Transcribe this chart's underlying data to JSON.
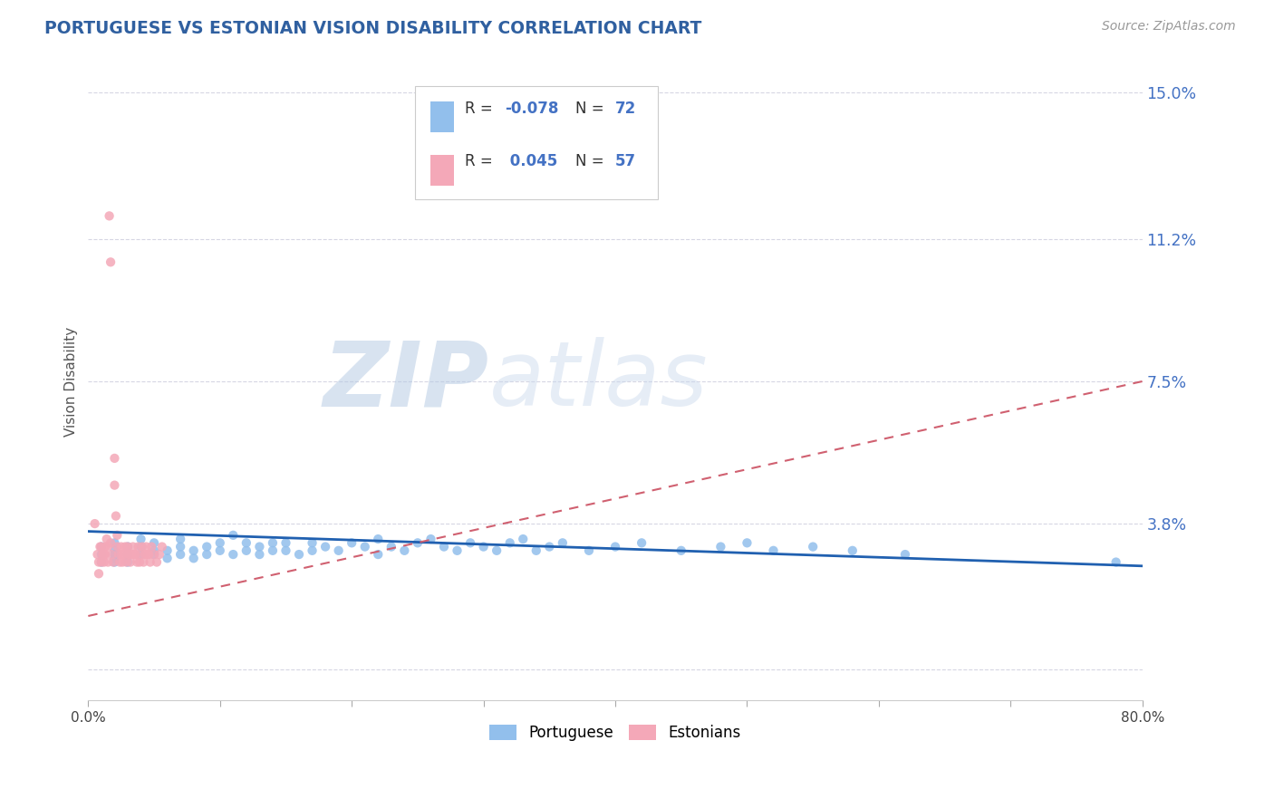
{
  "title": "PORTUGUESE VS ESTONIAN VISION DISABILITY CORRELATION CHART",
  "source_text": "Source: ZipAtlas.com",
  "ylabel": "Vision Disability",
  "x_min": 0.0,
  "x_max": 0.8,
  "y_min": -0.008,
  "y_max": 0.158,
  "yticks": [
    0.0,
    0.038,
    0.075,
    0.112,
    0.15
  ],
  "ytick_labels": [
    "",
    "3.8%",
    "7.5%",
    "11.2%",
    "15.0%"
  ],
  "xticks": [
    0.0,
    0.1,
    0.2,
    0.3,
    0.4,
    0.5,
    0.6,
    0.7,
    0.8
  ],
  "xtick_labels": [
    "0.0%",
    "",
    "",
    "",
    "",
    "",
    "",
    "",
    "80.0%"
  ],
  "portuguese_color": "#92BFEC",
  "estonian_color": "#F4A8B8",
  "trend_portuguese_color": "#2060B0",
  "trend_estonian_color": "#D06070",
  "legend_label_portuguese": "Portuguese",
  "legend_label_estonian": "Estonians",
  "portuguese_x": [
    0.01,
    0.01,
    0.01,
    0.02,
    0.02,
    0.02,
    0.02,
    0.02,
    0.03,
    0.03,
    0.03,
    0.04,
    0.04,
    0.04,
    0.05,
    0.05,
    0.05,
    0.06,
    0.06,
    0.07,
    0.07,
    0.07,
    0.08,
    0.08,
    0.09,
    0.09,
    0.1,
    0.1,
    0.11,
    0.11,
    0.12,
    0.12,
    0.13,
    0.13,
    0.14,
    0.14,
    0.15,
    0.15,
    0.16,
    0.17,
    0.17,
    0.18,
    0.19,
    0.2,
    0.21,
    0.22,
    0.22,
    0.23,
    0.24,
    0.25,
    0.26,
    0.27,
    0.28,
    0.29,
    0.3,
    0.31,
    0.32,
    0.33,
    0.34,
    0.35,
    0.36,
    0.38,
    0.4,
    0.42,
    0.45,
    0.48,
    0.5,
    0.52,
    0.55,
    0.58,
    0.62,
    0.78
  ],
  "portuguese_y": [
    0.03,
    0.032,
    0.028,
    0.031,
    0.029,
    0.033,
    0.028,
    0.03,
    0.03,
    0.032,
    0.028,
    0.03,
    0.032,
    0.034,
    0.03,
    0.031,
    0.033,
    0.031,
    0.029,
    0.03,
    0.032,
    0.034,
    0.031,
    0.029,
    0.03,
    0.032,
    0.031,
    0.033,
    0.03,
    0.035,
    0.031,
    0.033,
    0.032,
    0.03,
    0.033,
    0.031,
    0.031,
    0.033,
    0.03,
    0.031,
    0.033,
    0.032,
    0.031,
    0.033,
    0.032,
    0.03,
    0.034,
    0.032,
    0.031,
    0.033,
    0.034,
    0.032,
    0.031,
    0.033,
    0.032,
    0.031,
    0.033,
    0.034,
    0.031,
    0.032,
    0.033,
    0.031,
    0.032,
    0.033,
    0.031,
    0.032,
    0.033,
    0.031,
    0.032,
    0.031,
    0.03,
    0.028
  ],
  "estonian_x": [
    0.005,
    0.007,
    0.008,
    0.008,
    0.009,
    0.01,
    0.01,
    0.011,
    0.012,
    0.012,
    0.013,
    0.013,
    0.014,
    0.015,
    0.015,
    0.016,
    0.017,
    0.017,
    0.018,
    0.019,
    0.02,
    0.02,
    0.021,
    0.022,
    0.022,
    0.023,
    0.024,
    0.025,
    0.025,
    0.026,
    0.027,
    0.028,
    0.029,
    0.03,
    0.03,
    0.031,
    0.032,
    0.033,
    0.034,
    0.035,
    0.036,
    0.037,
    0.038,
    0.039,
    0.04,
    0.041,
    0.042,
    0.043,
    0.044,
    0.045,
    0.046,
    0.047,
    0.048,
    0.05,
    0.052,
    0.054,
    0.056
  ],
  "estonian_y": [
    0.038,
    0.03,
    0.025,
    0.028,
    0.032,
    0.032,
    0.028,
    0.03,
    0.03,
    0.028,
    0.032,
    0.03,
    0.034,
    0.032,
    0.028,
    0.118,
    0.106,
    0.033,
    0.03,
    0.028,
    0.055,
    0.048,
    0.04,
    0.035,
    0.032,
    0.03,
    0.028,
    0.032,
    0.03,
    0.028,
    0.03,
    0.032,
    0.028,
    0.03,
    0.032,
    0.03,
    0.028,
    0.03,
    0.032,
    0.03,
    0.03,
    0.028,
    0.032,
    0.028,
    0.03,
    0.032,
    0.028,
    0.03,
    0.032,
    0.03,
    0.03,
    0.028,
    0.032,
    0.03,
    0.028,
    0.03,
    0.032
  ],
  "port_trend_start_y": 0.036,
  "port_trend_end_y": 0.027,
  "est_trend_start_y": 0.014,
  "est_trend_end_y": 0.075
}
